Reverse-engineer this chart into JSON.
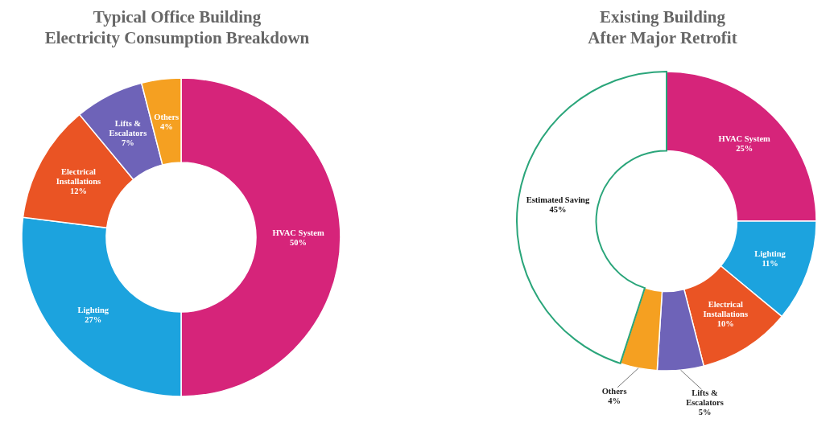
{
  "chart_data": [
    {
      "type": "donut",
      "title": "Typical Office Building Electricity Consumption Breakdown",
      "categories": [
        "HVAC System",
        "Lighting",
        "Electrical Installations",
        "Lifts & Escalators",
        "Others"
      ],
      "values": [
        50,
        27,
        12,
        7,
        4
      ],
      "value_labels": [
        "50%",
        "27%",
        "12%",
        "7%",
        "4%"
      ],
      "colors": [
        "#d6247a",
        "#1ca3de",
        "#ea5424",
        "#6e63b8",
        "#f5a021"
      ],
      "legend": false
    },
    {
      "type": "donut",
      "title": "Existing Building After Major Retrofit",
      "categories": [
        "HVAC System",
        "Lighting",
        "Electrical Installations",
        "Lifts & Escalators",
        "Others",
        "Estimated Saving"
      ],
      "values": [
        25,
        11,
        10,
        5,
        4,
        45
      ],
      "value_labels": [
        "25%",
        "11%",
        "10%",
        "5%",
        "4%",
        "45%"
      ],
      "colors": [
        "#d6247a",
        "#1ca3de",
        "#ea5424",
        "#6e63b8",
        "#f5a021",
        "#ffffff"
      ],
      "legend": false
    }
  ]
}
